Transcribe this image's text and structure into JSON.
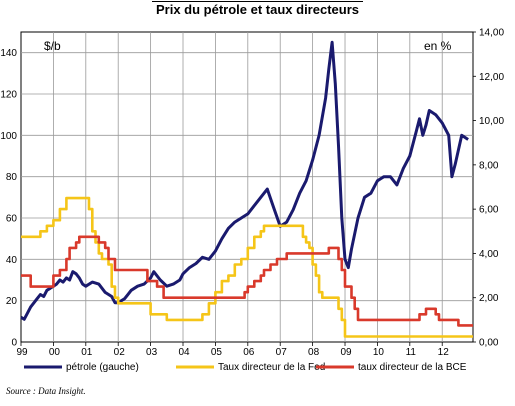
{
  "chart_data": {
    "type": "line",
    "title": "Prix du pétrole et taux directeurs",
    "left_axis_unit": "$/b",
    "right_axis_unit": "en %",
    "source": "Source : Data Insight.",
    "x_ticks": [
      "99",
      "00",
      "01",
      "02",
      "03",
      "04",
      "05",
      "06",
      "07",
      "08",
      "09",
      "10",
      "11",
      "12"
    ],
    "y_left": {
      "min": 0,
      "max": 150,
      "ticks": [
        "0",
        "20",
        "40",
        "60",
        "80",
        "100",
        "120",
        "140"
      ]
    },
    "y_right": {
      "min": 0,
      "max": 14,
      "ticks": [
        "0,00",
        "2,00",
        "4,00",
        "6,00",
        "8,00",
        "10,00",
        "12,00",
        "14,00"
      ]
    },
    "grid": true,
    "legend_position": "bottom",
    "series": [
      {
        "name": "pétrole (gauche)",
        "axis": "left",
        "color": "#1a1a6e",
        "x": [
          1999.0,
          1999.1,
          1999.2,
          1999.3,
          1999.4,
          1999.5,
          1999.6,
          1999.7,
          1999.8,
          1999.9,
          2000.0,
          2000.1,
          2000.2,
          2000.3,
          2000.4,
          2000.5,
          2000.6,
          2000.7,
          2000.8,
          2000.9,
          2001.0,
          2001.2,
          2001.4,
          2001.6,
          2001.8,
          2001.9,
          2002.0,
          2002.2,
          2002.4,
          2002.6,
          2002.8,
          2003.0,
          2003.1,
          2003.3,
          2003.5,
          2003.7,
          2003.9,
          2004.0,
          2004.2,
          2004.4,
          2004.6,
          2004.8,
          2005.0,
          2005.2,
          2005.4,
          2005.6,
          2005.8,
          2006.0,
          2006.2,
          2006.4,
          2006.6,
          2006.8,
          2007.0,
          2007.2,
          2007.4,
          2007.6,
          2007.8,
          2008.0,
          2008.2,
          2008.4,
          2008.5,
          2008.6,
          2008.7,
          2008.8,
          2008.9,
          2009.0,
          2009.1,
          2009.2,
          2009.4,
          2009.6,
          2009.8,
          2010.0,
          2010.2,
          2010.4,
          2010.6,
          2010.8,
          2011.0,
          2011.2,
          2011.3,
          2011.4,
          2011.5,
          2011.6,
          2011.8,
          2012.0,
          2012.2,
          2012.3,
          2012.4,
          2012.6,
          2012.8
        ],
        "values": [
          12,
          11,
          14,
          17,
          19,
          21,
          23,
          22,
          25,
          26,
          27,
          28,
          30,
          29,
          31,
          30,
          34,
          33,
          31,
          28,
          27,
          29,
          28,
          24,
          22,
          19,
          19,
          21,
          25,
          27,
          28,
          31,
          34,
          30,
          27,
          28,
          30,
          33,
          36,
          38,
          41,
          40,
          44,
          50,
          55,
          58,
          60,
          62,
          66,
          70,
          74,
          65,
          56,
          58,
          64,
          72,
          78,
          88,
          100,
          118,
          132,
          145,
          125,
          95,
          60,
          40,
          36,
          45,
          60,
          70,
          72,
          78,
          80,
          80,
          76,
          84,
          90,
          102,
          108,
          100,
          105,
          112,
          110,
          106,
          100,
          80,
          86,
          100,
          98
        ]
      },
      {
        "name": "Taux directeur de la Fed",
        "axis": "right",
        "color": "#f5c518",
        "x": [
          1999.0,
          1999.4,
          1999.6,
          1999.8,
          2000.0,
          2000.2,
          2000.4,
          2001.0,
          2001.1,
          2001.2,
          2001.3,
          2001.4,
          2001.5,
          2001.7,
          2001.8,
          2001.9,
          2002.0,
          2002.9,
          2003.0,
          2003.5,
          2004.5,
          2004.6,
          2004.8,
          2005.0,
          2005.2,
          2005.4,
          2005.6,
          2005.8,
          2006.0,
          2006.2,
          2006.4,
          2006.5,
          2007.6,
          2007.7,
          2007.8,
          2007.9,
          2008.0,
          2008.1,
          2008.2,
          2008.3,
          2008.8,
          2008.9,
          2009.0,
          2012.95
        ],
        "values": [
          4.75,
          4.75,
          5.0,
          5.25,
          5.5,
          6.0,
          6.5,
          6.5,
          6.0,
          5.0,
          4.5,
          4.0,
          3.75,
          3.5,
          2.5,
          2.0,
          1.75,
          1.75,
          1.25,
          1.0,
          1.0,
          1.25,
          1.75,
          2.25,
          2.75,
          3.0,
          3.5,
          3.75,
          4.25,
          4.75,
          5.0,
          5.25,
          5.25,
          4.75,
          4.5,
          4.25,
          3.5,
          3.0,
          2.25,
          2.0,
          1.5,
          1.0,
          0.25,
          0.25
        ]
      },
      {
        "name": "taux directeur de la BCE",
        "axis": "right",
        "color": "#d9392b",
        "x": [
          1999.0,
          1999.3,
          1999.9,
          2000.0,
          2000.2,
          2000.4,
          2000.5,
          2000.7,
          2000.8,
          2001.4,
          2001.6,
          2001.7,
          2001.9,
          2002.9,
          2003.2,
          2003.4,
          2003.5,
          2005.9,
          2006.0,
          2006.2,
          2006.4,
          2006.5,
          2006.7,
          2006.9,
          2007.2,
          2007.5,
          2008.5,
          2008.8,
          2008.9,
          2009.0,
          2009.2,
          2009.3,
          2009.4,
          2011.3,
          2011.5,
          2011.8,
          2011.9,
          2012.5,
          2012.95
        ],
        "values": [
          3.0,
          2.5,
          2.5,
          3.0,
          3.25,
          3.75,
          4.25,
          4.5,
          4.75,
          4.5,
          4.25,
          3.75,
          3.25,
          2.75,
          2.5,
          2.0,
          2.0,
          2.25,
          2.5,
          2.75,
          3.0,
          3.25,
          3.5,
          3.75,
          4.0,
          4.0,
          4.25,
          3.75,
          3.25,
          2.5,
          2.0,
          1.5,
          1.0,
          1.25,
          1.5,
          1.25,
          1.0,
          0.75,
          0.75
        ]
      }
    ]
  }
}
